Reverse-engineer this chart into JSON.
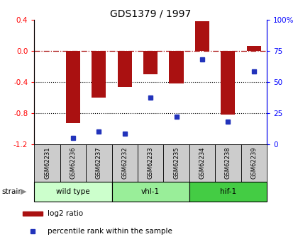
{
  "title": "GDS1379 / 1997",
  "samples": [
    "GSM62231",
    "GSM62236",
    "GSM62237",
    "GSM62232",
    "GSM62233",
    "GSM62235",
    "GSM62234",
    "GSM62238",
    "GSM62239"
  ],
  "log2_ratio": [
    0.0,
    -0.93,
    -0.6,
    -0.47,
    -0.3,
    -0.42,
    0.38,
    -0.82,
    0.06
  ],
  "percentile_rank": [
    null,
    5,
    10,
    8,
    37,
    22,
    68,
    18,
    58
  ],
  "groups": [
    {
      "label": "wild type",
      "indices": [
        0,
        1,
        2
      ],
      "color": "#ccffcc"
    },
    {
      "label": "vhl-1",
      "indices": [
        3,
        4,
        5
      ],
      "color": "#99ee99"
    },
    {
      "label": "hif-1",
      "indices": [
        6,
        7,
        8
      ],
      "color": "#44cc44"
    }
  ],
  "ylim_left": [
    -1.2,
    0.4
  ],
  "ylim_right": [
    0,
    100
  ],
  "yticks_left": [
    -1.2,
    -0.8,
    -0.4,
    0.0,
    0.4
  ],
  "yticks_right": [
    0,
    25,
    50,
    75,
    100
  ],
  "bar_color": "#aa1111",
  "dot_color": "#2233bb",
  "background_color": "#ffffff"
}
